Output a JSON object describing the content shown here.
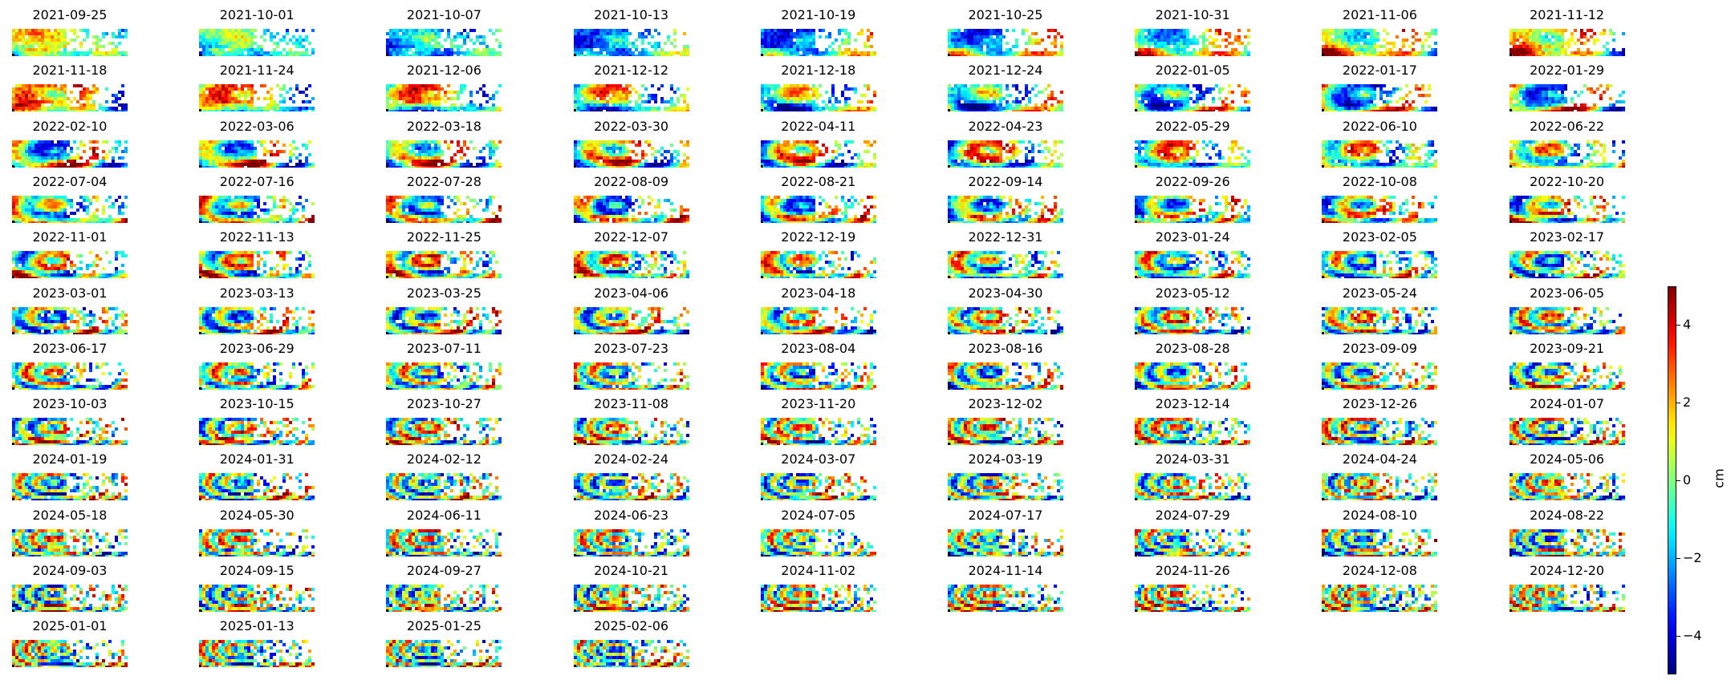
{
  "chart_data": {
    "type": "heatmap",
    "panel_titles": [
      "2021-09-25",
      "2021-10-01",
      "2021-10-07",
      "2021-10-13",
      "2021-10-19",
      "2021-10-25",
      "2021-10-31",
      "2021-11-06",
      "2021-11-12",
      "2021-11-18",
      "2021-11-24",
      "2021-12-06",
      "2021-12-12",
      "2021-12-18",
      "2021-12-24",
      "2022-01-05",
      "2022-01-17",
      "2022-01-29",
      "2022-02-10",
      "2022-03-06",
      "2022-03-18",
      "2022-03-30",
      "2022-04-11",
      "2022-04-23",
      "2022-05-29",
      "2022-06-10",
      "2022-06-22",
      "2022-07-04",
      "2022-07-16",
      "2022-07-28",
      "2022-08-09",
      "2022-08-21",
      "2022-09-14",
      "2022-09-26",
      "2022-10-08",
      "2022-10-20",
      "2022-11-01",
      "2022-11-13",
      "2022-11-25",
      "2022-12-07",
      "2022-12-19",
      "2022-12-31",
      "2023-01-24",
      "2023-02-05",
      "2023-02-17",
      "2023-03-01",
      "2023-03-13",
      "2023-03-25",
      "2023-04-06",
      "2023-04-18",
      "2023-04-30",
      "2023-05-12",
      "2023-05-24",
      "2023-06-05",
      "2023-06-17",
      "2023-06-29",
      "2023-07-11",
      "2023-07-23",
      "2023-08-04",
      "2023-08-16",
      "2023-08-28",
      "2023-09-09",
      "2023-09-21",
      "2023-10-03",
      "2023-10-15",
      "2023-10-27",
      "2023-11-08",
      "2023-11-20",
      "2023-12-02",
      "2023-12-14",
      "2023-12-26",
      "2024-01-07",
      "2024-01-19",
      "2024-01-31",
      "2024-02-12",
      "2024-02-24",
      "2024-03-07",
      "2024-03-19",
      "2024-03-31",
      "2024-04-24",
      "2024-05-06",
      "2024-05-18",
      "2024-05-30",
      "2024-06-11",
      "2024-06-23",
      "2024-07-05",
      "2024-07-17",
      "2024-07-29",
      "2024-08-10",
      "2024-08-22",
      "2024-09-03",
      "2024-09-15",
      "2024-09-27",
      "2024-10-21",
      "2024-11-02",
      "2024-11-14",
      "2024-11-26",
      "2024-12-08",
      "2024-12-20",
      "2025-01-01",
      "2025-01-13",
      "2025-01-25",
      "2025-02-06"
    ],
    "columns": 9,
    "colormap": "jet",
    "colorbar": {
      "label": "cm",
      "range": [
        -5,
        5
      ],
      "ticks": [
        4,
        2,
        0,
        -2,
        -4
      ],
      "tick_labels": [
        "4",
        "2",
        "0",
        "−2",
        "−4"
      ]
    },
    "grid": false
  }
}
